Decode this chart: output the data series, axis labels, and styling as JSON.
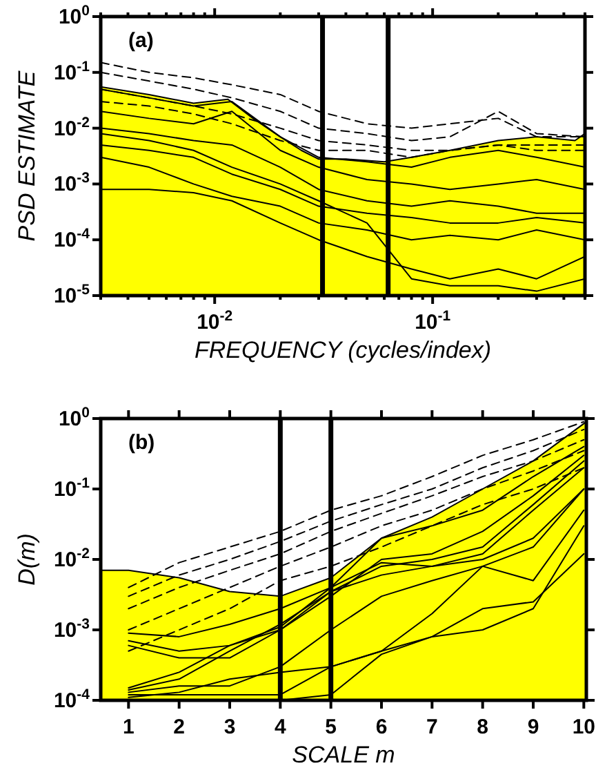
{
  "chart_data": [
    {
      "type": "line",
      "log": "xy",
      "xlabel": "FREQUENCY (cycles/index)",
      "ylabel": "PSD ESTIMATE",
      "annotations": [
        "(a)"
      ],
      "xlim": [
        0.003,
        0.5
      ],
      "ylim": [
        1e-05,
        1
      ],
      "xticks": [
        {
          "value": 0.003,
          "label": null
        },
        {
          "value": 0.004,
          "label": null
        },
        {
          "value": 0.005,
          "label": null
        },
        {
          "value": 0.006,
          "label": null
        },
        {
          "value": 0.007,
          "label": null
        },
        {
          "value": 0.008,
          "label": null
        },
        {
          "value": 0.009,
          "label": null
        },
        {
          "value": 0.01,
          "label": "10$^{-2}$"
        },
        {
          "value": 0.02,
          "label": null
        },
        {
          "value": 0.03,
          "label": null
        },
        {
          "value": 0.04,
          "label": null
        },
        {
          "value": 0.05,
          "label": null
        },
        {
          "value": 0.06,
          "label": null
        },
        {
          "value": 0.07,
          "label": null
        },
        {
          "value": 0.08,
          "label": null
        },
        {
          "value": 0.09,
          "label": null
        },
        {
          "value": 0.1,
          "label": "10$^{-1}$"
        },
        {
          "value": 0.2,
          "label": null
        },
        {
          "value": 0.3,
          "label": null
        },
        {
          "value": 0.4,
          "label": null
        },
        {
          "value": 0.5,
          "label": null
        }
      ],
      "yticks": [
        {
          "value": 1e-05,
          "label": "10$^{-5}$"
        },
        {
          "value": 0.0001,
          "label": "10$^{-4}$"
        },
        {
          "value": 0.001,
          "label": "10$^{-3}$"
        },
        {
          "value": 0.01,
          "label": "10$^{-2}$"
        },
        {
          "value": 0.1,
          "label": "10$^{-1}$"
        },
        {
          "value": 1,
          "label": "10$^{0}$"
        }
      ],
      "ref_lines": [
        {
          "axis": "x",
          "value": 0.03125,
          "color": "#000000"
        },
        {
          "axis": "x",
          "value": 0.0625,
          "color": "#000000"
        }
      ],
      "series": [
        {
          "type": "area",
          "color": "#ffff00",
          "x": [
            0.003,
            0.005,
            0.008,
            0.0115,
            0.015,
            0.02,
            0.025,
            0.03,
            0.04,
            0.06,
            0.08,
            0.12,
            0.2,
            0.3,
            0.45,
            0.5
          ],
          "values": [
            0.055,
            0.04,
            0.028,
            0.033,
            0.015,
            0.007,
            0.004,
            0.0028,
            0.0028,
            0.0025,
            0.003,
            0.004,
            0.006,
            0.007,
            0.006,
            0.008
          ]
        },
        {
          "type": "line",
          "line_style": "dashed",
          "color": "#000000",
          "x": [
            0.003,
            0.005,
            0.008,
            0.012,
            0.02,
            0.03,
            0.05,
            0.08,
            0.12,
            0.2,
            0.3,
            0.5
          ],
          "values": [
            0.15,
            0.1,
            0.08,
            0.06,
            0.04,
            0.02,
            0.012,
            0.01,
            0.012,
            0.015,
            0.007,
            0.007
          ]
        },
        {
          "type": "line",
          "line_style": "dashed",
          "color": "#000000",
          "x": [
            0.003,
            0.005,
            0.008,
            0.012,
            0.02,
            0.03,
            0.05,
            0.08,
            0.12,
            0.2,
            0.3,
            0.5
          ],
          "values": [
            0.1,
            0.07,
            0.05,
            0.035,
            0.02,
            0.01,
            0.008,
            0.006,
            0.007,
            0.02,
            0.008,
            0.007
          ]
        },
        {
          "type": "line",
          "line_style": "dashed",
          "color": "#000000",
          "x": [
            0.003,
            0.005,
            0.008,
            0.012,
            0.02,
            0.03,
            0.05,
            0.08,
            0.12,
            0.2,
            0.3,
            0.5
          ],
          "values": [
            0.05,
            0.035,
            0.025,
            0.018,
            0.01,
            0.006,
            0.005,
            0.004,
            0.004,
            0.005,
            0.005,
            0.005
          ]
        },
        {
          "type": "line",
          "line_style": "dashed",
          "color": "#000000",
          "x": [
            0.003,
            0.005,
            0.008,
            0.012,
            0.02,
            0.03,
            0.05,
            0.08,
            0.12,
            0.2,
            0.3,
            0.5
          ],
          "values": [
            0.03,
            0.025,
            0.018,
            0.012,
            0.006,
            0.004,
            0.004,
            0.003,
            0.004,
            0.005,
            0.004,
            0.004
          ]
        },
        {
          "type": "line",
          "line_style": "solid",
          "color": "#000000",
          "x": [
            0.003,
            0.005,
            0.008,
            0.012,
            0.02,
            0.03,
            0.05,
            0.08,
            0.12,
            0.2,
            0.3,
            0.5
          ],
          "values": [
            0.05,
            0.035,
            0.025,
            0.03,
            0.007,
            0.003,
            0.0025,
            0.002,
            0.003,
            0.004,
            0.003,
            0.002
          ]
        },
        {
          "type": "line",
          "line_style": "solid",
          "color": "#000000",
          "x": [
            0.003,
            0.005,
            0.008,
            0.012,
            0.02,
            0.03,
            0.05,
            0.08,
            0.12,
            0.2,
            0.3,
            0.5
          ],
          "values": [
            0.02,
            0.015,
            0.012,
            0.02,
            0.004,
            0.002,
            0.0012,
            0.001,
            0.0008,
            0.001,
            0.0012,
            0.0008
          ]
        },
        {
          "type": "line",
          "line_style": "solid",
          "color": "#000000",
          "x": [
            0.003,
            0.005,
            0.008,
            0.012,
            0.02,
            0.03,
            0.05,
            0.08,
            0.12,
            0.2,
            0.3,
            0.5
          ],
          "values": [
            0.01,
            0.008,
            0.006,
            0.005,
            0.002,
            0.0008,
            0.0005,
            0.0004,
            0.0005,
            0.0004,
            0.0003,
            0.0003
          ]
        },
        {
          "type": "line",
          "line_style": "solid",
          "color": "#000000",
          "x": [
            0.003,
            0.005,
            0.008,
            0.012,
            0.02,
            0.03,
            0.05,
            0.08,
            0.12,
            0.2,
            0.3,
            0.5
          ],
          "values": [
            0.005,
            0.004,
            0.003,
            0.0015,
            0.0008,
            0.0004,
            0.0003,
            0.00025,
            0.0002,
            0.0002,
            0.00025,
            0.0002
          ]
        },
        {
          "type": "line",
          "line_style": "solid",
          "color": "#000000",
          "x": [
            0.003,
            0.005,
            0.008,
            0.012,
            0.02,
            0.03,
            0.05,
            0.08,
            0.12,
            0.2,
            0.3,
            0.5
          ],
          "values": [
            0.003,
            0.002,
            0.001,
            0.0006,
            0.0004,
            0.0002,
            0.00015,
            0.0001,
            0.00012,
            0.0001,
            0.00015,
            0.0001
          ]
        },
        {
          "type": "line",
          "line_style": "solid",
          "color": "#000000",
          "x": [
            0.003,
            0.005,
            0.008,
            0.012,
            0.02,
            0.03,
            0.05,
            0.08,
            0.12,
            0.2,
            0.3,
            0.5
          ],
          "values": [
            0.0008,
            0.0008,
            0.0007,
            0.0005,
            0.0002,
            0.0001,
            5e-05,
            3e-05,
            2e-05,
            3e-05,
            2e-05,
            5e-05
          ]
        },
        {
          "type": "line",
          "line_style": "solid",
          "color": "#000000",
          "x": [
            0.003,
            0.005,
            0.008,
            0.012,
            0.02,
            0.03,
            0.05,
            0.08,
            0.12,
            0.2,
            0.3,
            0.5
          ],
          "values": [
            0.008,
            0.006,
            0.004,
            0.002,
            0.001,
            0.0005,
            0.0002,
            2e-05,
            1.5e-05,
            1.5e-05,
            1.2e-05,
            2e-05
          ]
        }
      ]
    },
    {
      "type": "line",
      "log": "y",
      "xlabel": "SCALE m",
      "ylabel": "D(m)",
      "annotations": [
        "(b)"
      ],
      "xlim": [
        0.45,
        10.05
      ],
      "ylim": [
        0.0001,
        1
      ],
      "xticks": [
        1,
        2,
        3,
        4,
        5,
        6,
        7,
        8,
        9,
        10
      ],
      "yticks": [
        {
          "value": 0.0001,
          "label": "10$^{-4}$"
        },
        {
          "value": 0.001,
          "label": "10$^{-3}$"
        },
        {
          "value": 0.01,
          "label": "10$^{-2}$"
        },
        {
          "value": 0.1,
          "label": "10$^{-1}$"
        },
        {
          "value": 1,
          "label": "10$^{0}$"
        }
      ],
      "ref_lines": [
        {
          "axis": "x",
          "value": 4,
          "color": "#000000"
        },
        {
          "axis": "x",
          "value": 5,
          "color": "#000000"
        }
      ],
      "series": [
        {
          "type": "area",
          "color": "#ffff00",
          "x": [
            0.45,
            1,
            2,
            3,
            4,
            5,
            6,
            7,
            8,
            9,
            10.05
          ],
          "values": [
            0.007,
            0.007,
            0.0055,
            0.0035,
            0.003,
            0.0055,
            0.02,
            0.04,
            0.1,
            0.25,
            0.9
          ]
        },
        {
          "type": "line",
          "line_style": "dashed",
          "color": "#000000",
          "x": [
            1,
            2,
            3,
            4,
            5,
            6,
            7,
            8,
            9,
            10
          ],
          "values": [
            0.004,
            0.009,
            0.015,
            0.025,
            0.05,
            0.08,
            0.15,
            0.3,
            0.5,
            0.9
          ]
        },
        {
          "type": "line",
          "line_style": "dashed",
          "color": "#000000",
          "x": [
            1,
            2,
            3,
            4,
            5,
            6,
            7,
            8,
            9,
            10
          ],
          "values": [
            0.003,
            0.006,
            0.01,
            0.018,
            0.035,
            0.06,
            0.1,
            0.2,
            0.35,
            0.7
          ]
        },
        {
          "type": "line",
          "line_style": "dashed",
          "color": "#000000",
          "x": [
            1,
            2,
            3,
            4,
            5,
            6,
            7,
            8,
            9,
            10
          ],
          "values": [
            0.002,
            0.004,
            0.007,
            0.012,
            0.025,
            0.045,
            0.08,
            0.15,
            0.25,
            0.5
          ]
        },
        {
          "type": "line",
          "line_style": "dashed",
          "color": "#000000",
          "x": [
            1,
            2,
            3,
            4,
            5,
            6,
            7,
            8,
            9,
            10
          ],
          "values": [
            0.001,
            0.002,
            0.004,
            0.008,
            0.015,
            0.03,
            0.05,
            0.1,
            0.18,
            0.35
          ]
        },
        {
          "type": "line",
          "line_style": "dashed",
          "color": "#000000",
          "x": [
            1,
            2,
            3,
            4,
            5,
            6,
            7,
            8,
            9,
            10
          ],
          "values": [
            0.0005,
            0.001,
            0.002,
            0.005,
            0.008,
            0.015,
            0.03,
            0.06,
            0.1,
            0.2
          ]
        },
        {
          "type": "line",
          "line_style": "solid",
          "color": "#000000",
          "x": [
            1,
            2,
            3,
            4,
            5,
            6,
            7,
            8,
            9,
            10
          ],
          "values": [
            0.0009,
            0.0008,
            0.0012,
            0.002,
            0.004,
            0.02,
            0.03,
            0.05,
            0.15,
            0.4
          ]
        },
        {
          "type": "line",
          "line_style": "solid",
          "color": "#000000",
          "x": [
            1,
            2,
            3,
            4,
            5,
            6,
            7,
            8,
            9,
            10
          ],
          "values": [
            0.0007,
            0.0005,
            0.0006,
            0.001,
            0.003,
            0.01,
            0.012,
            0.025,
            0.08,
            0.3
          ]
        },
        {
          "type": "line",
          "line_style": "solid",
          "color": "#000000",
          "x": [
            1,
            2,
            3,
            4,
            5,
            6,
            7,
            8,
            9,
            10
          ],
          "values": [
            0.0006,
            0.0004,
            0.0004,
            0.001,
            0.0035,
            0.008,
            0.01,
            0.015,
            0.06,
            0.25
          ]
        },
        {
          "type": "line",
          "line_style": "solid",
          "color": "#000000",
          "x": [
            1,
            2,
            3,
            4,
            5,
            6,
            7,
            8,
            9,
            10
          ],
          "values": [
            0.00015,
            0.00025,
            0.0006,
            0.0011,
            0.004,
            0.009,
            0.008,
            0.012,
            0.05,
            0.2
          ]
        },
        {
          "type": "line",
          "line_style": "solid",
          "color": "#000000",
          "x": [
            1,
            2,
            3,
            4,
            5,
            6,
            7,
            8,
            9,
            10
          ],
          "values": [
            0.00014,
            0.0002,
            0.0005,
            0.0012,
            0.0035,
            0.006,
            0.008,
            0.01,
            0.02,
            0.1
          ]
        },
        {
          "type": "line",
          "line_style": "solid",
          "color": "#000000",
          "x": [
            1,
            2,
            3,
            4,
            5,
            6,
            7,
            8,
            9,
            10
          ],
          "values": [
            0.00013,
            0.00016,
            0.00016,
            0.0003,
            0.001,
            0.003,
            0.005,
            0.008,
            0.005,
            0.05
          ]
        },
        {
          "type": "line",
          "line_style": "solid",
          "color": "#000000",
          "x": [
            1,
            2,
            3,
            4,
            5,
            6,
            7,
            8,
            9,
            10
          ],
          "values": [
            0.00012,
            0.00012,
            0.00012,
            0.00012,
            0.0003,
            0.0005,
            0.0008,
            0.001,
            0.002,
            0.03
          ]
        },
        {
          "type": "line",
          "line_style": "solid",
          "color": "#000000",
          "x": [
            1,
            2,
            3,
            4,
            5,
            6,
            7,
            8,
            9,
            10
          ],
          "values": [
            0.00011,
            0.00013,
            0.0002,
            0.00025,
            0.0003,
            0.0005,
            0.0017,
            0.008,
            0.015,
            0.1
          ]
        },
        {
          "type": "line",
          "line_style": "solid",
          "color": "#000000",
          "x": [
            1,
            2,
            3,
            4,
            5,
            6,
            7,
            8,
            9,
            10
          ],
          "values": [
            0.0001,
            0.0001,
            0.0001,
            0.0001,
            0.00012,
            0.00045,
            0.0008,
            0.002,
            0.0025,
            0.012
          ]
        }
      ]
    }
  ]
}
